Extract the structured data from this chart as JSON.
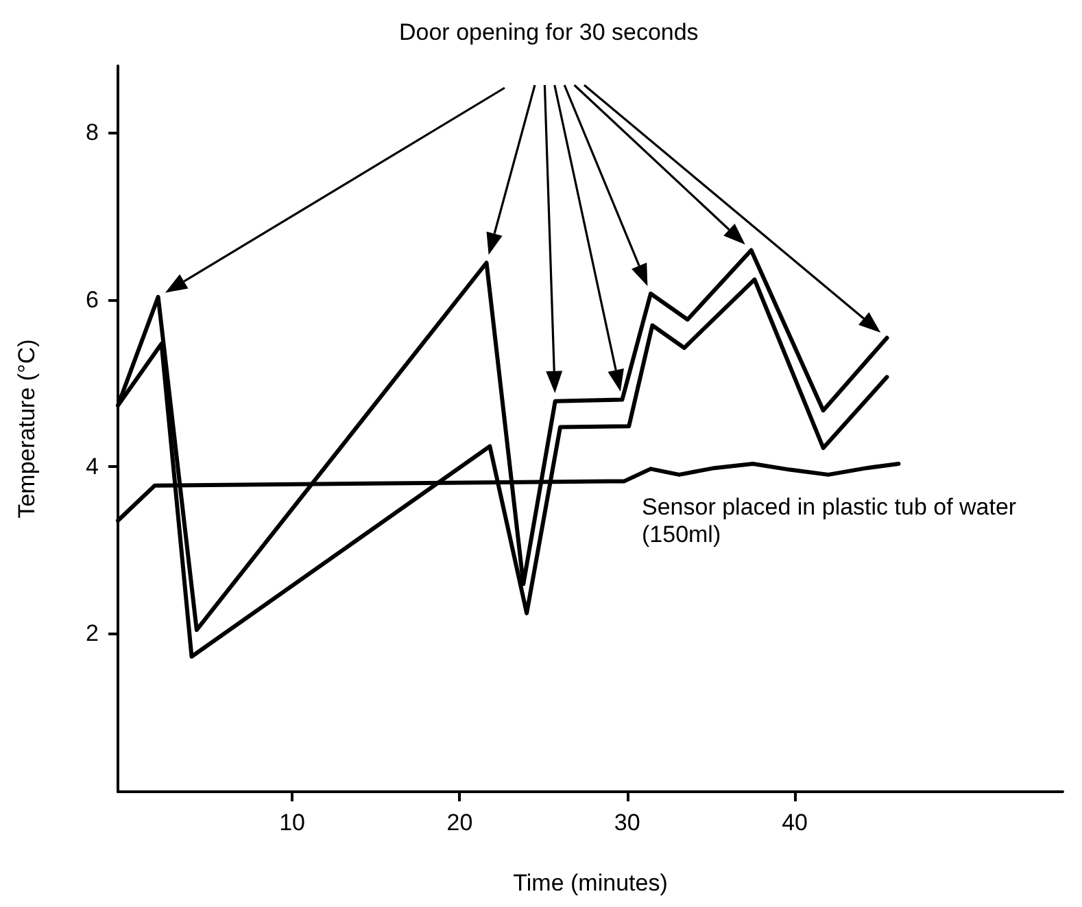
{
  "chart_data": {
    "type": "line",
    "xlabel": "Time (minutes)",
    "ylabel": "Temperature (°C)",
    "xlim": [
      -0.4,
      56
    ],
    "xticks": [
      10,
      20,
      30,
      40
    ],
    "ylim": [
      0.1,
      8.8
    ],
    "yticks": [
      2,
      4,
      6,
      8
    ],
    "grid": false,
    "marker": "none",
    "line_style": "solid",
    "series": [
      {
        "color": "#000000",
        "x": [
          -0.4,
          2.0,
          4.3,
          21.6,
          23.8,
          25.7,
          29.7,
          31.4,
          33.6,
          37.4,
          41.7,
          45.5
        ],
        "values": [
          4.73,
          6.03,
          2.04,
          6.44,
          2.59,
          4.78,
          4.8,
          6.07,
          5.76,
          6.59,
          4.67,
          5.54
        ]
      },
      {
        "color": "#000000",
        "x": [
          -0.4,
          2.2,
          4.0,
          21.8,
          24.0,
          26.0,
          30.1,
          31.5,
          33.4,
          37.6,
          41.7,
          45.5
        ],
        "values": [
          4.73,
          5.47,
          1.72,
          4.24,
          2.24,
          4.47,
          4.48,
          5.69,
          5.42,
          6.24,
          4.22,
          5.07
        ]
      },
      {
        "color": "#000000",
        "x": [
          -0.4,
          1.8,
          28.8,
          29.8,
          31.4,
          33.1,
          35.2,
          37.5,
          39.7,
          42.0,
          44.3,
          46.2
        ],
        "values": [
          3.35,
          3.77,
          3.82,
          3.82,
          3.97,
          3.9,
          3.98,
          4.03,
          3.96,
          3.9,
          3.98,
          4.03
        ]
      }
    ],
    "annotations": [
      "Door opening for 30 seconds",
      "Sensor placed in plastic tub of water (150ml)"
    ]
  }
}
